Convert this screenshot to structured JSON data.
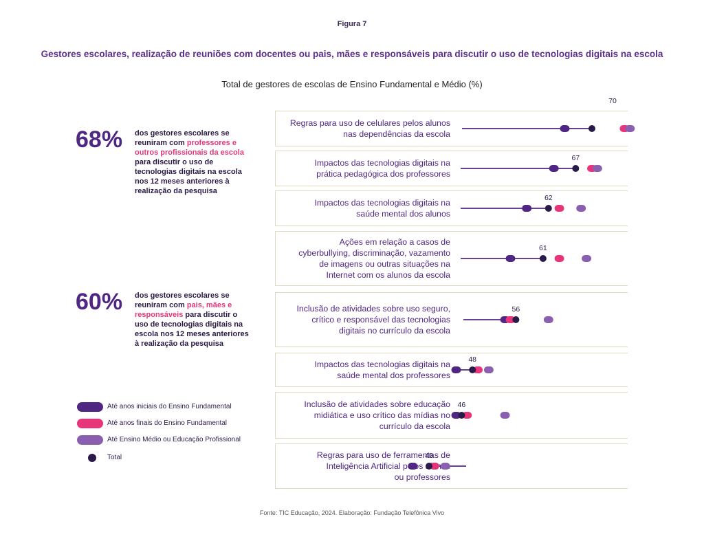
{
  "figure_label": "Figura 7",
  "title": "Gestores escolares, realização de reuniões com docentes ou pais, mães e responsáveis para discutir o uso de tecnologias digitais na escola",
  "subtitle": "Total de gestores de escolas de Ensino Fundamental e Médio (%)",
  "source": "Fonte: TIC Educação, 2024. Elaboração: Fundação Telefônica Vivo",
  "stats": [
    {
      "value": "68%",
      "pre": "dos gestores escolares se reuniram com ",
      "highlight": "professores e outros profissionais da escola",
      "post": " para discutir o uso de tecnologias digitais na escola nos 12 meses anteriores à realização da pesquisa"
    },
    {
      "value": "60%",
      "pre": "dos gestores escolares se reuniram com ",
      "highlight": "pais, mães e responsáveis",
      "post": " para discutir o uso de tecnologias digitais na escola nos 12 meses anteriores à realização da pesquisa"
    }
  ],
  "legend": [
    {
      "label": "Até anos iniciais do Ensino Fundamental",
      "color": "#4f2683",
      "shape": "pill"
    },
    {
      "label": "Até anos finais do Ensino Fundamental",
      "color": "#e8357a",
      "shape": "pill"
    },
    {
      "label": "Até Ensino Médio ou Educação Profissional",
      "color": "#8b5fb0",
      "shape": "pill"
    },
    {
      "label": "Total",
      "color": "#2a1a4a",
      "shape": "dot"
    }
  ],
  "colors": {
    "initial": "#4f2683",
    "final": "#e8357a",
    "medio": "#8b5fb0",
    "total": "#2a1a4a",
    "line": "#4f2683",
    "border": "#ddd9c4"
  },
  "chart_data": {
    "type": "dot-line",
    "title": "Total de gestores de escolas de Ensino Fundamental e Médio (%)",
    "series_names": [
      "Até anos iniciais do Ensino Fundamental",
      "Até anos finais do Ensino Fundamental",
      "Até Ensino Médio ou Educação Profissional",
      "Total"
    ],
    "categories": [
      {
        "label": [
          "Regras para uso de celulares pelos alunos",
          "nas dependências da escola"
        ],
        "total": 70,
        "initial": 65,
        "final": 76,
        "medio": 77
      },
      {
        "label": [
          "Impactos das tecnologias digitais na",
          "prática pedagógica dos professores"
        ],
        "total": 67,
        "initial": 63,
        "final": 70,
        "medio": 71
      },
      {
        "label": [
          "Impactos das tecnologias digitais na",
          "saúde mental dos alunos"
        ],
        "total": 62,
        "initial": 58,
        "final": 64,
        "medio": 68
      },
      {
        "label": [
          "Ações em relação a casos de",
          "cyberbullying, discriminação, vazamento",
          "de imagens ou outras situações na",
          "Internet com os alunos da escola"
        ],
        "total": 61,
        "initial": 55,
        "final": 64,
        "medio": 69
      },
      {
        "label": [
          "Inclusão de atividades sobre uso seguro,",
          "crítico e responsável das tecnologias",
          "digitais no currículo da escola"
        ],
        "total": 56,
        "initial": 54,
        "final": 55,
        "medio": 62
      },
      {
        "label": [
          "Impactos das tecnologias digitais na",
          "saúde mental dos professores"
        ],
        "total": 48,
        "initial": 45,
        "final": 49,
        "medio": 51
      },
      {
        "label": [
          "Inclusão de atividades sobre educação",
          "midiática e uso crítico das mídias no",
          "currículo da escola"
        ],
        "total": 46,
        "initial": 45,
        "final": 47,
        "medio": 54
      },
      {
        "label": [
          "Regras para uso de ferramentas de",
          "Inteligência Artificial pelos alunos",
          "ou professores"
        ],
        "total": 40,
        "initial": 37,
        "final": 41,
        "medio": 43
      }
    ]
  }
}
